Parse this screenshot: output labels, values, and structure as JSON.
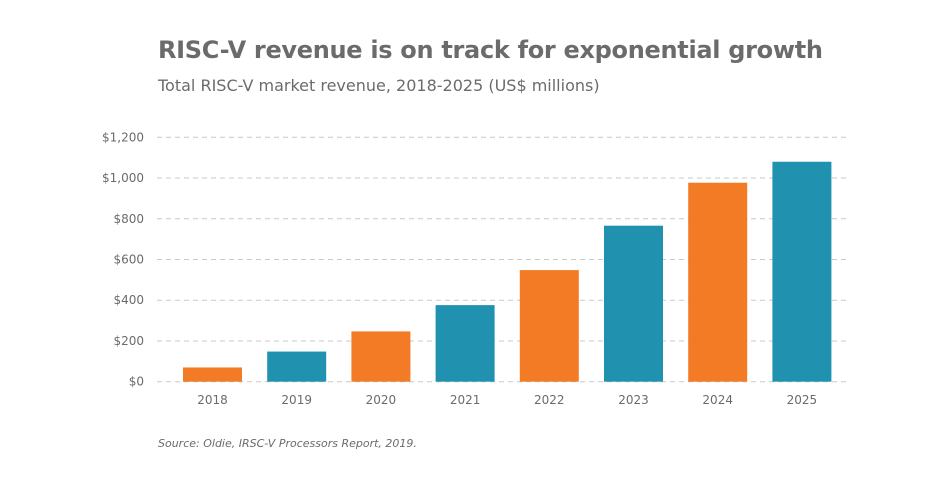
{
  "chart_data": {
    "type": "bar",
    "title": "RISC-V revenue is on track for exponential growth",
    "subtitle": "Total RISC-V market revenue, 2018-2025 (US$ millions)",
    "categories": [
      "2018",
      "2019",
      "2020",
      "2021",
      "2022",
      "2023",
      "2024",
      "2025"
    ],
    "values": [
      70,
      148,
      247,
      376,
      548,
      766,
      977,
      1080
    ],
    "bar_colors": [
      "#f47b25",
      "#2092b0",
      "#f47b25",
      "#2092b0",
      "#f47b25",
      "#2092b0",
      "#f47b25",
      "#2092b0"
    ],
    "ylim": [
      0,
      1200
    ],
    "yticks": [
      0,
      200,
      400,
      600,
      800,
      1000,
      1200
    ],
    "ytick_labels": [
      "$0",
      "$200",
      "$400",
      "$600",
      "$800",
      "$1,000",
      "$1,200"
    ],
    "grid": "horizontal dashed",
    "source": "Source: Oldie, IRSC-V Processors Report, 2019."
  }
}
